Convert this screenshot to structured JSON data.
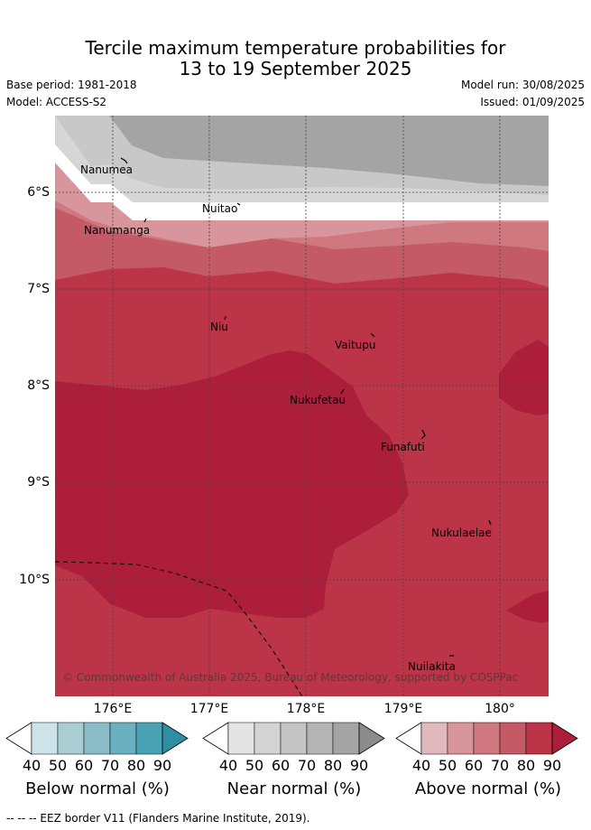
{
  "title": {
    "line1": "Tercile maximum temperature probabilities for",
    "line2": "13 to 19 September 2025"
  },
  "meta": {
    "base_period": "Base period: 1981-2018",
    "model": "Model: ACCESS-S2",
    "model_run": "Model run: 30/08/2025",
    "issued": "Issued: 01/09/2025"
  },
  "map": {
    "credit": "© Commonwealth of Australia 2025, Bureau of Meteorology, supported by COSPPac",
    "lon_labels": [
      "176°E",
      "177°E",
      "178°E",
      "179°E",
      "180°"
    ],
    "lat_labels": [
      "6°S",
      "7°S",
      "8°S",
      "9°S",
      "10°S"
    ],
    "places": [
      {
        "name": "Nanumea"
      },
      {
        "name": "Nanumanga"
      },
      {
        "name": "Nuitao"
      },
      {
        "name": "Niu"
      },
      {
        "name": "Vaitupu"
      },
      {
        "name": "Nukufetau"
      },
      {
        "name": "Funafuti"
      },
      {
        "name": "Nukulaelae"
      },
      {
        "name": "Nuilakita"
      }
    ]
  },
  "colorbars": [
    {
      "title": "Below normal (%)",
      "ticks": [
        "40",
        "50",
        "60",
        "70",
        "80",
        "90"
      ],
      "colors": [
        "#cde3ea",
        "#a8cdd3",
        "#8abbc7",
        "#6ab0c0",
        "#4aa3b4",
        "#2e8fa3"
      ]
    },
    {
      "title": "Near normal (%)",
      "ticks": [
        "40",
        "50",
        "60",
        "70",
        "80",
        "90"
      ],
      "colors": [
        "#e4e4e4",
        "#d4d4d4",
        "#c4c4c4",
        "#b4b4b4",
        "#a4a4a4",
        "#8c8c8c"
      ]
    },
    {
      "title": "Above normal (%)",
      "ticks": [
        "40",
        "50",
        "60",
        "70",
        "80",
        "90"
      ],
      "colors": [
        "#e0b8bd",
        "#d8959c",
        "#cf7880",
        "#c45a66",
        "#bb3448",
        "#ad1e3a"
      ]
    }
  ],
  "footer": "--  --  -- EEZ border V11 (Flanders Marine Institute, 2019)."
}
